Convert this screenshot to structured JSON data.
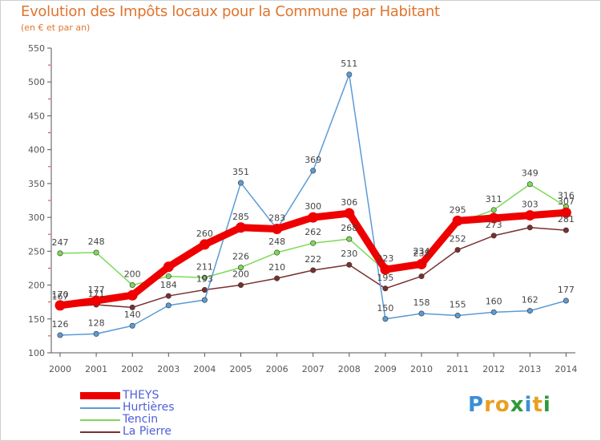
{
  "title": "Evolution des Impôts locaux pour la Commune par Habitant",
  "subtitle": "(en € et par an)",
  "logo": {
    "parts": [
      {
        "char": "P",
        "color": "#3b8fd6"
      },
      {
        "char": "r",
        "color": "#e8a020"
      },
      {
        "char": "o",
        "color": "#e8a020"
      },
      {
        "char": "x",
        "color": "#2e9a3a"
      },
      {
        "char": "i",
        "color": "#3b8fd6"
      },
      {
        "char": "t",
        "color": "#e8a020"
      },
      {
        "char": "i",
        "color": "#2e9a3a"
      }
    ]
  },
  "chart_data": {
    "type": "line",
    "x": [
      "2000",
      "2001",
      "2002",
      "2003",
      "2004",
      "2005",
      "2006",
      "2007",
      "2008",
      "2009",
      "2010",
      "2011",
      "2012",
      "2013",
      "2014"
    ],
    "ylim": [
      100,
      550
    ],
    "yticks": [
      100,
      150,
      200,
      250,
      300,
      350,
      400,
      450,
      500,
      550
    ],
    "grid": false,
    "legend_position": "bottom-left",
    "series": [
      {
        "name": "THEYS",
        "color": "#ee0000",
        "values": [
          170,
          177,
          185,
          227,
          260,
          285,
          283,
          300,
          306,
          223,
          231,
          295,
          299,
          303,
          307
        ],
        "labels": [
          "170",
          "177",
          "",
          "",
          "260",
          "285",
          "283",
          "300",
          "306",
          "223",
          "231",
          "295",
          "",
          "303",
          "307"
        ]
      },
      {
        "name": "Hurtières",
        "color": "#5b9bd5",
        "values": [
          126,
          128,
          140,
          170,
          178,
          351,
          283,
          369,
          511,
          150,
          158,
          155,
          160,
          162,
          177
        ],
        "labels": [
          "126",
          "128",
          "140",
          "",
          "",
          "351",
          "",
          "369",
          "511",
          "150",
          "158",
          "155",
          "160",
          "162",
          "177"
        ]
      },
      {
        "name": "Tencin",
        "color": "#7ed957",
        "values": [
          247,
          248,
          200,
          213,
          211,
          226,
          248,
          262,
          268,
          221,
          234,
          292,
          311,
          349,
          316
        ],
        "labels": [
          "247",
          "248",
          "200",
          "",
          "211",
          "226",
          "248",
          "262",
          "268",
          "",
          "234",
          "",
          "311",
          "349",
          "316"
        ]
      },
      {
        "name": "La Pierre",
        "color": "#7a2f2f",
        "values": [
          167,
          171,
          167,
          184,
          193,
          200,
          210,
          222,
          230,
          195,
          213,
          252,
          273,
          285,
          281
        ],
        "labels": [
          "167",
          "171",
          "",
          "184",
          "193",
          "200",
          "210",
          "222",
          "230",
          "195",
          "",
          "252",
          "273",
          "",
          "281"
        ]
      }
    ]
  }
}
